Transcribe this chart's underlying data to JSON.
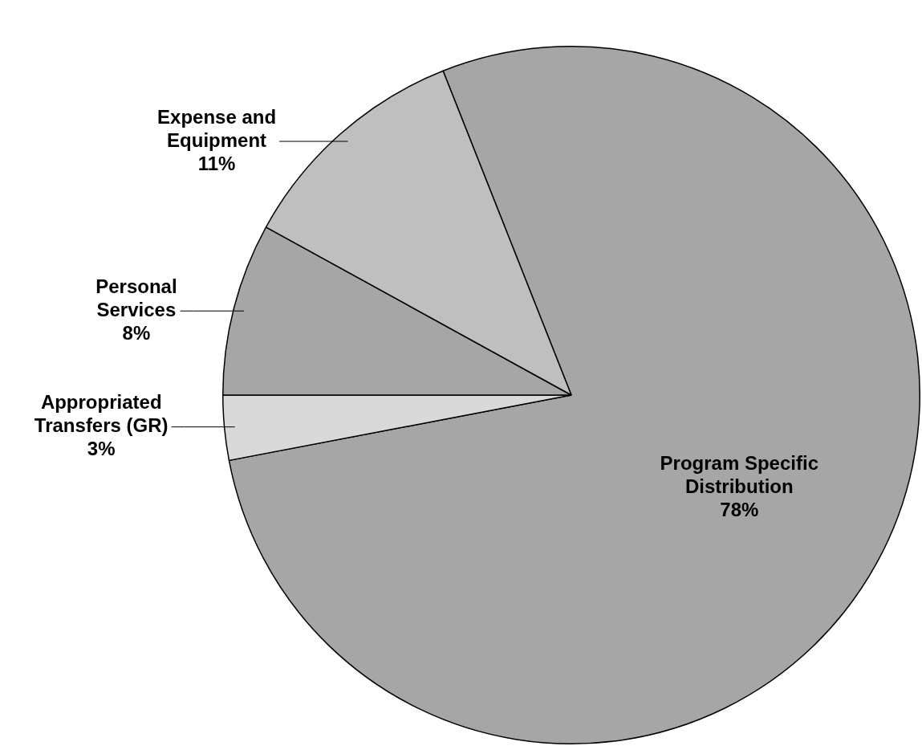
{
  "chart_data": {
    "type": "pie",
    "categories": [
      "Program Specific Distribution",
      "Appropriated Transfers (GR)",
      "Personal Services",
      "Expense and Equipment"
    ],
    "values": [
      78,
      3,
      8,
      11
    ],
    "value_labels": [
      "78%",
      "3%",
      "8%",
      "11%"
    ],
    "colors": [
      "#a6a6a6",
      "#d9d9d9",
      "#a6a6a6",
      "#bfbfbf"
    ]
  }
}
